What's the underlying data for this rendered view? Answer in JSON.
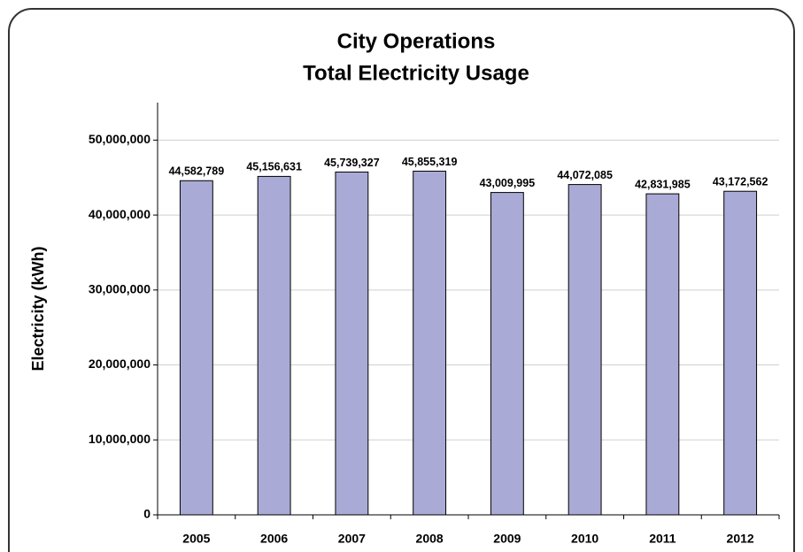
{
  "chart_data": {
    "type": "bar",
    "title": [
      "City Operations",
      "Total Electricity Usage"
    ],
    "y_label": "Electricity (kWh)",
    "categories": [
      "2005",
      "2006",
      "2007",
      "2008",
      "2009",
      "2010",
      "2011",
      "2012"
    ],
    "values": [
      44582789,
      45156631,
      45739327,
      45855319,
      43009995,
      44072085,
      42831985,
      43172562
    ],
    "value_labels": [
      "44,582,789",
      "45,156,631",
      "45,739,327",
      "45,855,319",
      "43,009,995",
      "44,072,085",
      "42,831,985",
      "43,172,562"
    ],
    "color": "#aaaad6",
    "ylim": [
      0,
      55000000
    ],
    "yticks": [
      0,
      {
        "value": 10000000,
        "label": "10,000,000"
      },
      {
        "value": 20000000,
        "label": "20,000,000"
      },
      {
        "value": 30000000,
        "label": "30,000,000"
      },
      {
        "value": 40000000,
        "label": "40,000,000"
      },
      {
        "value": 50000000,
        "label": "50,000,000"
      }
    ],
    "grid": true
  }
}
